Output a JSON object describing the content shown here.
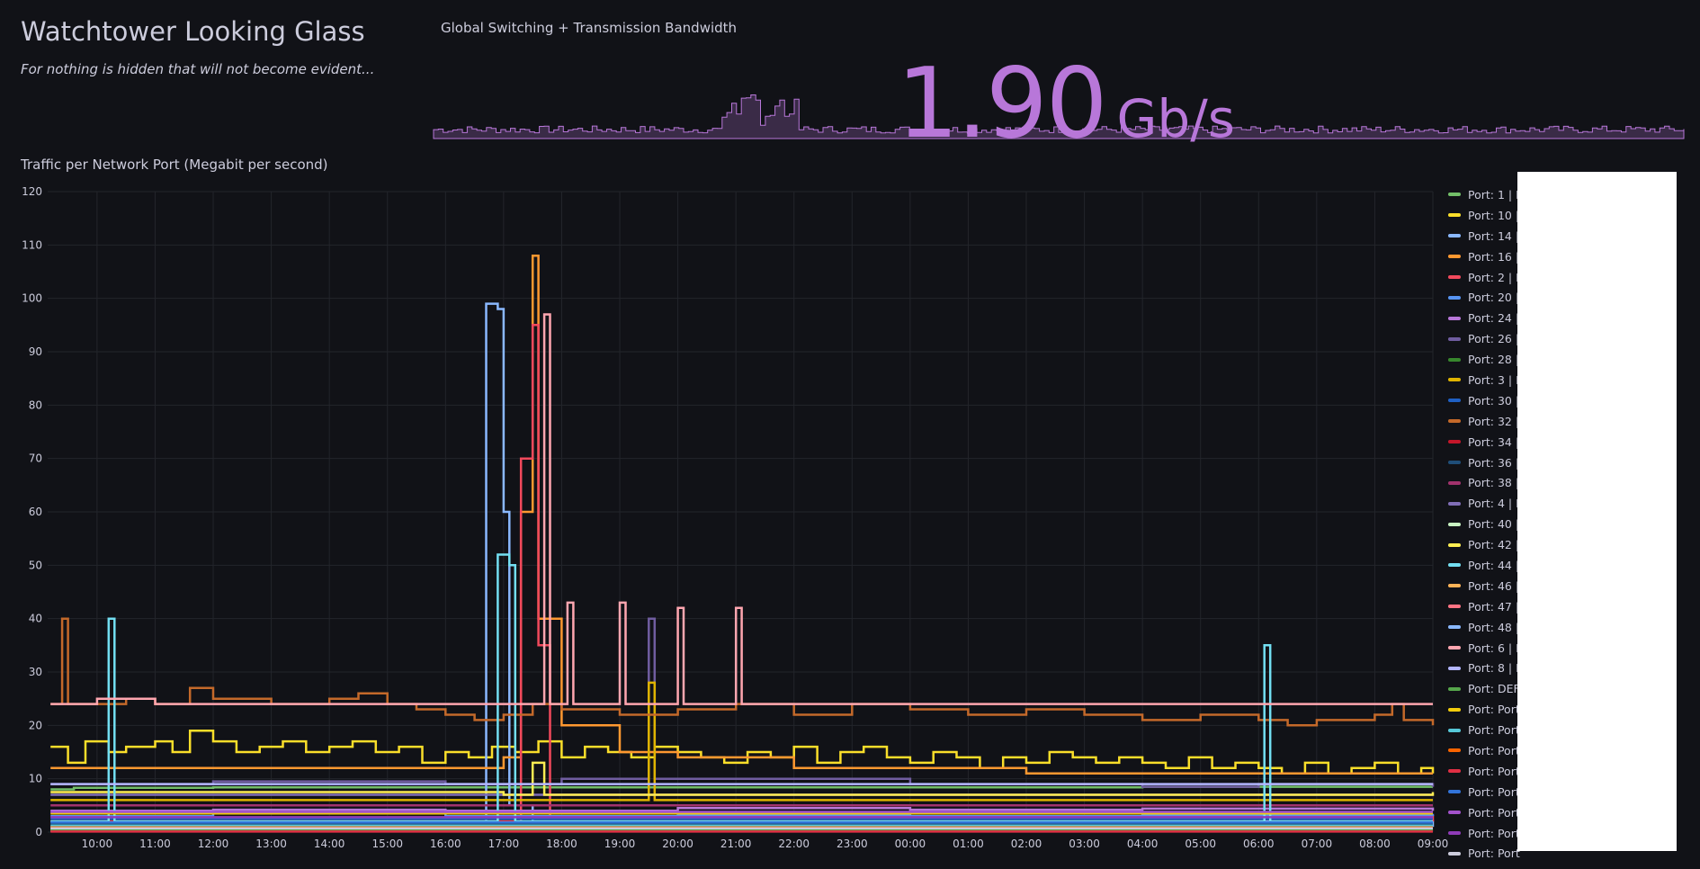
{
  "dashboard": {
    "title": "Watchtower Looking Glass",
    "subtitle": "For nothing is hidden that will not become evident..."
  },
  "stat_panel": {
    "title": "Global Switching + Transmission Bandwidth",
    "value": "1.90",
    "unit": "Gb/s",
    "color": "#b877d9"
  },
  "timeseries_panel": {
    "title": "Traffic per Network Port (Megabit per second)"
  },
  "chart_data": {
    "type": "line",
    "title": "Traffic per Network Port (Megabit per second)",
    "ylim": [
      0,
      120
    ],
    "y_ticks": [
      "0",
      "10",
      "20",
      "30",
      "40",
      "50",
      "60",
      "70",
      "80",
      "90",
      "100",
      "110",
      "120"
    ],
    "x_ticks": [
      "10:00",
      "11:00",
      "12:00",
      "13:00",
      "14:00",
      "15:00",
      "16:00",
      "17:00",
      "18:00",
      "19:00",
      "20:00",
      "21:00",
      "22:00",
      "23:00",
      "00:00",
      "01:00",
      "02:00",
      "03:00",
      "04:00",
      "05:00",
      "06:00",
      "07:00",
      "08:00",
      "09:00"
    ],
    "x_hours": [
      10,
      11,
      12,
      13,
      14,
      15,
      16,
      17,
      18,
      19,
      20,
      21,
      22,
      23,
      24,
      25,
      26,
      27,
      28,
      29,
      30,
      31,
      32,
      33
    ],
    "xlim_hours": [
      9.15,
      33.0
    ],
    "grid": true,
    "legend_placement": "right",
    "series": [
      {
        "name": "Port: 1 | I",
        "color": "#73bf69",
        "points": [
          [
            9.2,
            8
          ],
          [
            9.6,
            8.3
          ],
          [
            12,
            8.4
          ],
          [
            16,
            8.4
          ],
          [
            20,
            8.4
          ],
          [
            24,
            8.4
          ],
          [
            28,
            8.5
          ],
          [
            33,
            8.5
          ]
        ]
      },
      {
        "name": "Port: 10 |",
        "color": "#fade2a",
        "points": [
          [
            9.2,
            16
          ],
          [
            9.5,
            13
          ],
          [
            9.8,
            17
          ],
          [
            10.2,
            15
          ],
          [
            10.5,
            16
          ],
          [
            11,
            17
          ],
          [
            11.3,
            15
          ],
          [
            11.6,
            19
          ],
          [
            12,
            17
          ],
          [
            12.4,
            15
          ],
          [
            12.8,
            16
          ],
          [
            13.2,
            17
          ],
          [
            13.6,
            15
          ],
          [
            14,
            16
          ],
          [
            14.4,
            17
          ],
          [
            14.8,
            15
          ],
          [
            15.2,
            16
          ],
          [
            15.6,
            13
          ],
          [
            16,
            15
          ],
          [
            16.4,
            14
          ],
          [
            16.8,
            16
          ],
          [
            17.2,
            15
          ],
          [
            17.6,
            17
          ],
          [
            18,
            14
          ],
          [
            18.4,
            16
          ],
          [
            18.8,
            15
          ],
          [
            19.2,
            14
          ],
          [
            19.6,
            16
          ],
          [
            20,
            15
          ],
          [
            20.4,
            14
          ],
          [
            20.8,
            13
          ],
          [
            21.2,
            15
          ],
          [
            21.6,
            14
          ],
          [
            22,
            16
          ],
          [
            22.4,
            13
          ],
          [
            22.8,
            15
          ],
          [
            23.2,
            16
          ],
          [
            23.6,
            14
          ],
          [
            24,
            13
          ],
          [
            24.4,
            15
          ],
          [
            24.8,
            14
          ],
          [
            25.2,
            12
          ],
          [
            25.6,
            14
          ],
          [
            26,
            13
          ],
          [
            26.4,
            15
          ],
          [
            26.8,
            14
          ],
          [
            27.2,
            13
          ],
          [
            27.6,
            14
          ],
          [
            28,
            13
          ],
          [
            28.4,
            12
          ],
          [
            28.8,
            14
          ],
          [
            29.2,
            12
          ],
          [
            29.6,
            13
          ],
          [
            30,
            12
          ],
          [
            30.4,
            11
          ],
          [
            30.8,
            13
          ],
          [
            31.2,
            11
          ],
          [
            31.6,
            12
          ],
          [
            32,
            13
          ],
          [
            32.4,
            11
          ],
          [
            32.8,
            12
          ],
          [
            33,
            11
          ]
        ]
      },
      {
        "name": "Port: 14 |",
        "color": "#8ab8ff",
        "points": [
          [
            9.2,
            1
          ],
          [
            16.5,
            1
          ],
          [
            16.7,
            99
          ],
          [
            16.9,
            98
          ],
          [
            17,
            60
          ],
          [
            17.1,
            5
          ],
          [
            17.5,
            2
          ],
          [
            33,
            1
          ]
        ]
      },
      {
        "name": "Port: 16 |",
        "color": "#ff9830",
        "points": [
          [
            9.2,
            12
          ],
          [
            10,
            12
          ],
          [
            12,
            12
          ],
          [
            14,
            12
          ],
          [
            16,
            12
          ],
          [
            17,
            14
          ],
          [
            17.3,
            60
          ],
          [
            17.5,
            108
          ],
          [
            17.6,
            40
          ],
          [
            18,
            20
          ],
          [
            19,
            15
          ],
          [
            20,
            14
          ],
          [
            22,
            12
          ],
          [
            24,
            12
          ],
          [
            26,
            11
          ],
          [
            28,
            11
          ],
          [
            30,
            11
          ],
          [
            33,
            11
          ]
        ]
      },
      {
        "name": "Port: 2 | I",
        "color": "#f2495c",
        "points": [
          [
            9.2,
            2
          ],
          [
            17,
            2
          ],
          [
            17.3,
            70
          ],
          [
            17.5,
            95
          ],
          [
            17.6,
            35
          ],
          [
            17.8,
            3
          ],
          [
            33,
            2
          ]
        ]
      },
      {
        "name": "Port: 20 |",
        "color": "#5794f2",
        "points": [
          [
            9.2,
            3
          ],
          [
            12,
            3.5
          ],
          [
            16,
            3
          ],
          [
            20,
            3.2
          ],
          [
            24,
            3
          ],
          [
            28,
            3.2
          ],
          [
            33,
            3
          ]
        ]
      },
      {
        "name": "Port: 24 |",
        "color": "#b877d9",
        "points": [
          [
            9.2,
            4
          ],
          [
            12,
            4.2
          ],
          [
            16,
            4
          ],
          [
            20,
            4.5
          ],
          [
            24,
            4.2
          ],
          [
            28,
            4.4
          ],
          [
            33,
            4
          ]
        ]
      },
      {
        "name": "Port: 26 |",
        "color": "#705da0",
        "points": [
          [
            9.2,
            9
          ],
          [
            12,
            9.5
          ],
          [
            16,
            9
          ],
          [
            18,
            10
          ],
          [
            19.5,
            40
          ],
          [
            19.6,
            10
          ],
          [
            24,
            9
          ],
          [
            28,
            8.5
          ],
          [
            30,
            9
          ],
          [
            33,
            8.5
          ]
        ]
      },
      {
        "name": "Port: 28 |",
        "color": "#37872d",
        "points": [
          [
            9.2,
            0.8
          ],
          [
            33,
            0.8
          ]
        ]
      },
      {
        "name": "Port: 3 | I",
        "color": "#e0b400",
        "points": [
          [
            9.2,
            6
          ],
          [
            16,
            6
          ],
          [
            19,
            6
          ],
          [
            19.5,
            28
          ],
          [
            19.6,
            6
          ],
          [
            20,
            6
          ],
          [
            33,
            6
          ]
        ]
      },
      {
        "name": "Port: 30 |",
        "color": "#1f60c4",
        "points": [
          [
            9.2,
            2.5
          ],
          [
            33,
            2.5
          ]
        ]
      },
      {
        "name": "Port: 32 |",
        "color": "#c4692a",
        "points": [
          [
            9.2,
            24
          ],
          [
            9.4,
            40
          ],
          [
            9.5,
            24
          ],
          [
            10.5,
            25
          ],
          [
            11,
            24
          ],
          [
            11.6,
            27
          ],
          [
            12,
            25
          ],
          [
            13,
            24
          ],
          [
            14,
            25
          ],
          [
            14.5,
            26
          ],
          [
            15,
            24
          ],
          [
            15.5,
            23
          ],
          [
            16,
            22
          ],
          [
            16.5,
            21
          ],
          [
            17,
            22
          ],
          [
            17.5,
            24
          ],
          [
            18,
            23
          ],
          [
            19,
            22
          ],
          [
            20,
            23
          ],
          [
            21,
            24
          ],
          [
            22,
            22
          ],
          [
            23,
            24
          ],
          [
            24,
            23
          ],
          [
            25,
            22
          ],
          [
            26,
            23
          ],
          [
            27,
            22
          ],
          [
            28,
            21
          ],
          [
            29,
            22
          ],
          [
            30,
            21
          ],
          [
            30.5,
            20
          ],
          [
            31,
            21
          ],
          [
            32,
            22
          ],
          [
            32.3,
            24
          ],
          [
            32.5,
            21
          ],
          [
            33,
            20
          ]
        ]
      },
      {
        "name": "Port: 34 |",
        "color": "#c4162a",
        "points": [
          [
            9.2,
            0.5
          ],
          [
            33,
            0.5
          ]
        ]
      },
      {
        "name": "Port: 36 |",
        "color": "#1f4e79",
        "points": [
          [
            9.2,
            1.5
          ],
          [
            33,
            1.5
          ]
        ]
      },
      {
        "name": "Port: 38 |",
        "color": "#a2326d",
        "points": [
          [
            9.2,
            5
          ],
          [
            33,
            5
          ]
        ]
      },
      {
        "name": "Port: 4 | I",
        "color": "#806eb7",
        "points": [
          [
            9.2,
            7
          ],
          [
            33,
            7
          ]
        ]
      },
      {
        "name": "Port: 40 |",
        "color": "#c8f2c2",
        "points": [
          [
            9.2,
            0.3
          ],
          [
            33,
            0.3
          ]
        ]
      },
      {
        "name": "Port: 42 |",
        "color": "#ffee52",
        "points": [
          [
            9.2,
            7.5
          ],
          [
            17,
            7
          ],
          [
            17.5,
            13
          ],
          [
            17.7,
            7
          ],
          [
            33,
            7.5
          ]
        ]
      },
      {
        "name": "Port: 44 |",
        "color": "#73dff2",
        "points": [
          [
            9.2,
            2
          ],
          [
            10.2,
            40
          ],
          [
            10.3,
            2
          ],
          [
            16.8,
            2
          ],
          [
            16.9,
            52
          ],
          [
            17.1,
            50
          ],
          [
            17.2,
            2
          ],
          [
            30,
            2
          ],
          [
            30.1,
            35
          ],
          [
            30.2,
            2
          ],
          [
            33,
            2
          ]
        ]
      },
      {
        "name": "Port: 46 |",
        "color": "#ffb357",
        "points": [
          [
            9.2,
            1
          ],
          [
            33,
            1
          ]
        ]
      },
      {
        "name": "Port: 47 |",
        "color": "#ff7383",
        "points": [
          [
            9.2,
            0.2
          ],
          [
            33,
            0.2
          ]
        ]
      },
      {
        "name": "Port: 48 |",
        "color": "#8ab8ff",
        "points": [
          [
            9.2,
            0.6
          ],
          [
            33,
            0.6
          ]
        ]
      },
      {
        "name": "Port: 6 | I",
        "color": "#ffa6b0",
        "points": [
          [
            9.2,
            24
          ],
          [
            10,
            25
          ],
          [
            11,
            24
          ],
          [
            17.6,
            24
          ],
          [
            17.7,
            97
          ],
          [
            17.8,
            24
          ],
          [
            18.1,
            43
          ],
          [
            18.2,
            24
          ],
          [
            19,
            43
          ],
          [
            19.1,
            24
          ],
          [
            20,
            42
          ],
          [
            20.1,
            24
          ],
          [
            21,
            42
          ],
          [
            21.1,
            24
          ],
          [
            33,
            24
          ]
        ]
      },
      {
        "name": "Port: 8 | I",
        "color": "#b3b6ff",
        "points": [
          [
            9.2,
            9
          ],
          [
            33,
            9
          ]
        ]
      },
      {
        "name": "Port: DEF",
        "color": "#56a64b",
        "points": [
          [
            9.2,
            0.4
          ],
          [
            33,
            0.4
          ]
        ]
      },
      {
        "name": "Port: Port",
        "color": "#f2cc0c",
        "points": [
          [
            9.2,
            3.5
          ],
          [
            33,
            3.5
          ]
        ]
      },
      {
        "name": "Port: Port",
        "color": "#56c8d8",
        "points": [
          [
            9.2,
            1.2
          ],
          [
            33,
            1.2
          ]
        ]
      },
      {
        "name": "Port: Port",
        "color": "#fa6400",
        "points": [
          [
            9.2,
            0.9
          ],
          [
            33,
            0.9
          ]
        ]
      },
      {
        "name": "Port: Port",
        "color": "#e02f44",
        "points": [
          [
            9.2,
            0.1
          ],
          [
            33,
            0.1
          ]
        ]
      },
      {
        "name": "Port: Port",
        "color": "#3274d9",
        "points": [
          [
            9.2,
            1.8
          ],
          [
            33,
            1.8
          ]
        ]
      },
      {
        "name": "Port: Port",
        "color": "#a352cc",
        "points": [
          [
            9.2,
            3.8
          ],
          [
            33,
            3.8
          ]
        ]
      },
      {
        "name": "Port: Port",
        "color": "#8f3bb8",
        "points": [
          [
            9.2,
            2.8
          ],
          [
            33,
            2.8
          ]
        ]
      },
      {
        "name": "Port: Port",
        "color": "#ccccdc",
        "points": [
          [
            9.2,
            0.7
          ],
          [
            33,
            0.7
          ]
        ]
      }
    ]
  }
}
